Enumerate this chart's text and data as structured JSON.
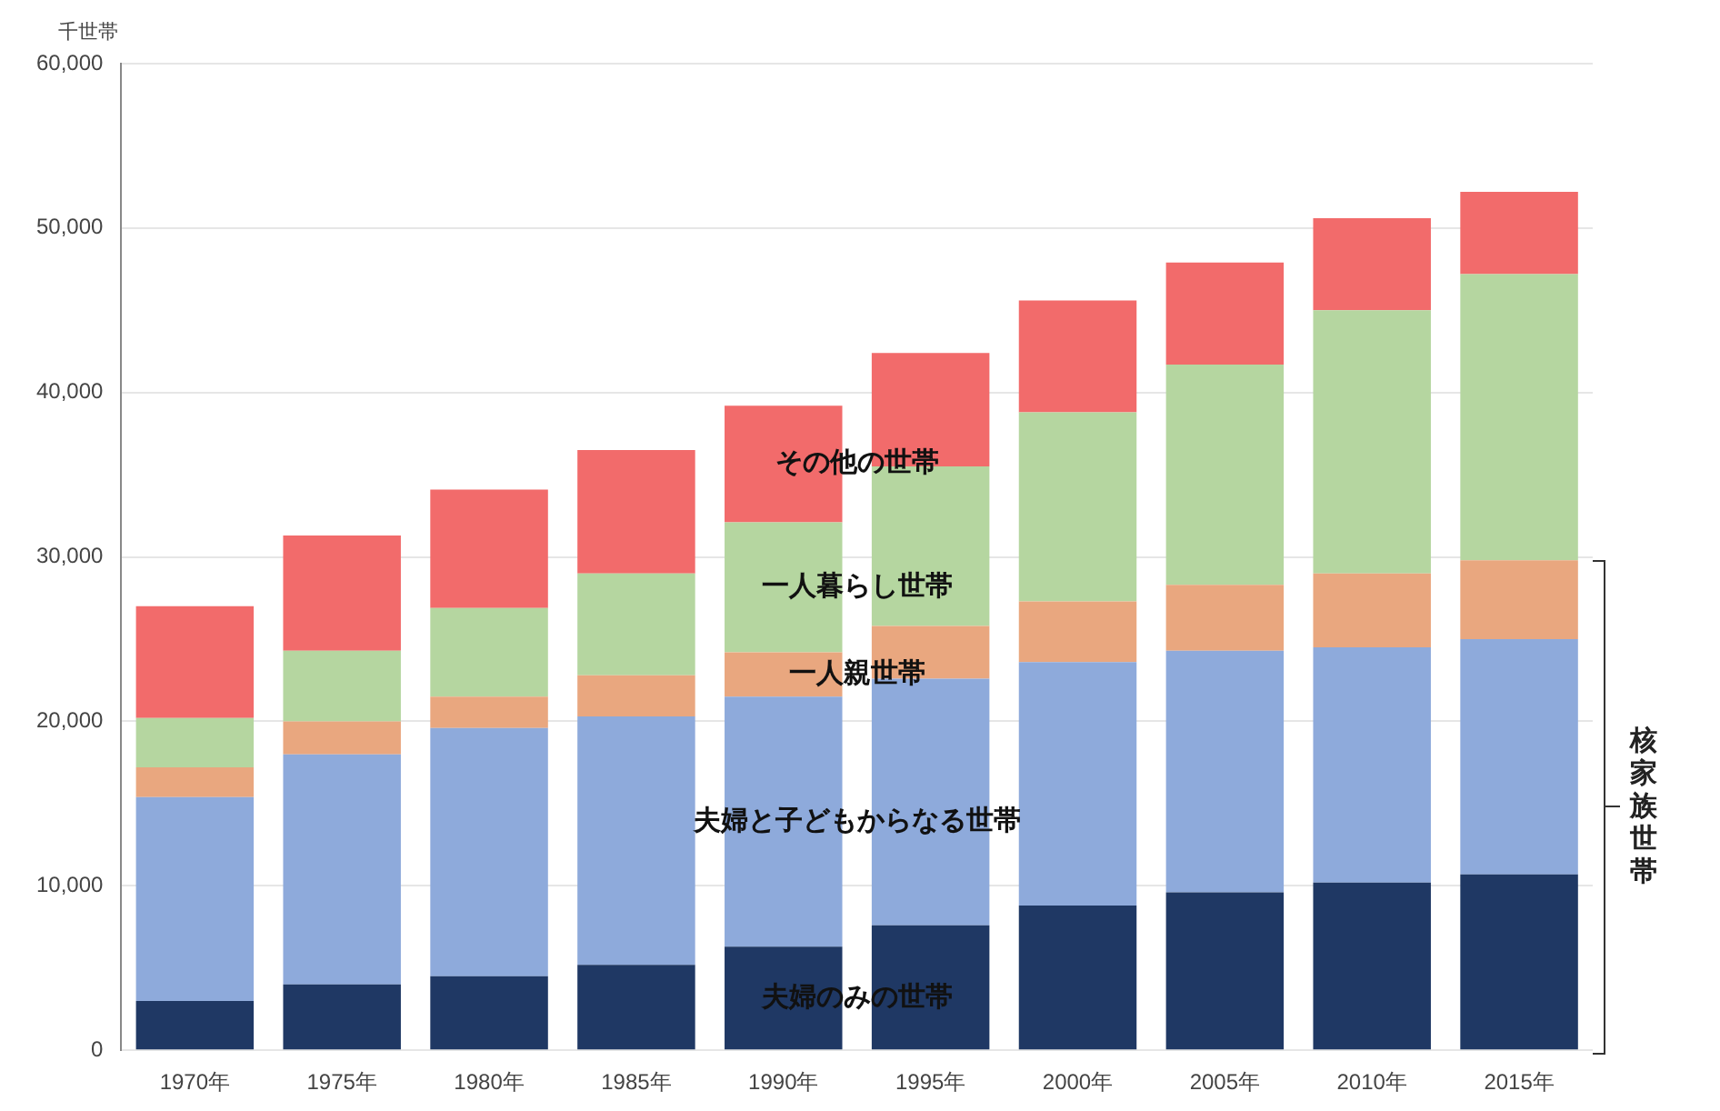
{
  "chart_data": {
    "type": "bar",
    "stacked": true,
    "ylabel": "千世帯",
    "categories": [
      "1970年",
      "1975年",
      "1980年",
      "1985年",
      "1990年",
      "1995年",
      "2000年",
      "2005年",
      "2010年",
      "2015年"
    ],
    "series": [
      {
        "name": "夫婦のみの世帯",
        "color": "#1f3864",
        "values": [
          3000,
          4000,
          4500,
          5200,
          6300,
          7600,
          8800,
          9600,
          10200,
          10700
        ]
      },
      {
        "name": "夫婦と子どもからなる世帯",
        "color": "#8eaadb",
        "values": [
          12400,
          14000,
          15100,
          15100,
          15200,
          15000,
          14800,
          14700,
          14300,
          14300
        ]
      },
      {
        "name": "一人親世帯",
        "color": "#e9a77f",
        "values": [
          1800,
          2000,
          1900,
          2500,
          2700,
          3200,
          3700,
          4000,
          4500,
          4800
        ]
      },
      {
        "name": "一人暮らし世帯",
        "color": "#b5d6a0",
        "values": [
          3000,
          4300,
          5400,
          6200,
          7900,
          9700,
          11500,
          13400,
          16000,
          17400
        ]
      },
      {
        "name": "その他の世帯",
        "color": "#f26b6b",
        "values": [
          6800,
          7000,
          7200,
          7500,
          7100,
          6900,
          6800,
          6200,
          5600,
          5000
        ]
      }
    ],
    "ylim": [
      0,
      60000
    ],
    "yticks": [
      0,
      {
        "value": 10000,
        "label": "10,000"
      },
      {
        "value": 20000,
        "label": "20,000"
      },
      {
        "value": 30000,
        "label": "30,000"
      },
      {
        "value": 40000,
        "label": "40,000"
      },
      {
        "value": 50000,
        "label": "50,000"
      },
      {
        "value": 60000,
        "label": "60,000"
      }
    ],
    "grid": "y",
    "legend": false,
    "annotations": [
      "核家族世帯"
    ]
  }
}
